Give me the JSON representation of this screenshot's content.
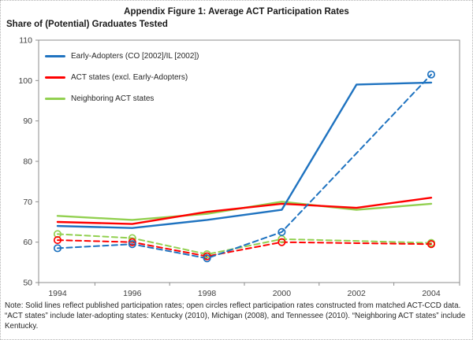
{
  "figure": {
    "title": "Appendix Figure 1: Average ACT Participation Rates",
    "y_axis_title": "Share of (Potential) Graduates Tested"
  },
  "note": {
    "lines": [
      "Note: Solid lines reflect published participation rates; open circles reflect participation rates constructed from matched ACT-CCD data.",
      "“ACT states” include later-adopting states: Kentucky (2010), Michigan (2008), and Tennessee (2010). “Neighboring ACT states” include",
      "Kentucky."
    ]
  },
  "chart_data": {
    "type": "line",
    "title": "Appendix Figure 1: Average ACT Participation Rates",
    "ylabel": "Share of (Potential) Graduates Tested",
    "xlabel": "",
    "grid": false,
    "legend_position": "top-left-inside",
    "categories": [
      "1994",
      "1996",
      "1998",
      "2000",
      "2002",
      "2004"
    ],
    "y_axis": {
      "min": 50,
      "max": 110,
      "tick_step": 10,
      "ticks": [
        110,
        100,
        90,
        80,
        70,
        60,
        50
      ]
    },
    "legend": [
      {
        "label": "Early-Adopters (CO [2002]/IL [2002])",
        "color": "#1F73C0"
      },
      {
        "label": "ACT states (excl. Early-Adopters)",
        "color": "#FF0000"
      },
      {
        "label": "Neighboring ACT states",
        "color": "#92D050"
      }
    ],
    "series": [
      {
        "name": "Neighboring ACT states (published)",
        "color": "#92D050",
        "line": "solid",
        "values": [
          66.5,
          65.5,
          67,
          70,
          68,
          69.5
        ]
      },
      {
        "name": "ACT states excl. Early-Adopters (published)",
        "color": "#FF0000",
        "line": "solid",
        "values": [
          65,
          64.5,
          67.5,
          69.5,
          68.5,
          71
        ]
      },
      {
        "name": "Early-Adopters CO/IL (published)",
        "color": "#1F73C0",
        "line": "solid",
        "values": [
          64,
          63.5,
          65.5,
          68,
          99,
          99.5
        ]
      },
      {
        "name": "Neighboring ACT states (ACT-CCD constructed)",
        "color": "#92D050",
        "line": "dashed",
        "values": [
          62,
          61,
          57,
          60.75,
          60.3,
          59.8
        ],
        "markers": [
          true,
          true,
          true,
          true,
          false,
          true
        ]
      },
      {
        "name": "ACT states excl. Early-Adopters (ACT-CCD constructed)",
        "color": "#FF0000",
        "line": "dashed",
        "values": [
          60.5,
          60,
          56.5,
          60,
          59.75,
          59.5
        ],
        "markers": [
          true,
          true,
          true,
          true,
          false,
          true
        ]
      },
      {
        "name": "Early-Adopters CO/IL (ACT-CCD constructed)",
        "color": "#1F73C0",
        "line": "dashed",
        "values": [
          58.5,
          59.5,
          56,
          62.5,
          82,
          101.5
        ],
        "markers": [
          true,
          true,
          true,
          true,
          false,
          true
        ]
      }
    ]
  }
}
